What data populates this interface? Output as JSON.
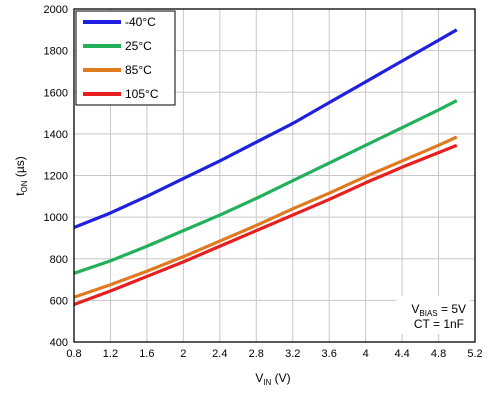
{
  "chart_data": {
    "type": "line",
    "title": "",
    "xlabel": {
      "main": "V",
      "sub": "IN",
      "unit": " (V)"
    },
    "ylabel": {
      "main": "t",
      "sub": "ON",
      "unit": " (µs)"
    },
    "xlim": [
      0.8,
      5.2
    ],
    "ylim": [
      400,
      2000
    ],
    "xticks": [
      0.8,
      1.2,
      1.6,
      2,
      2.4,
      2.8,
      3.2,
      3.6,
      4,
      4.4,
      4.8,
      5.2
    ],
    "xtick_labels": [
      "0.8",
      "1.2",
      "1.6",
      "2",
      "2.4",
      "2.8",
      "3.2",
      "3.6",
      "4",
      "4.4",
      "4.8",
      "5.2"
    ],
    "yticks": [
      400,
      600,
      800,
      1000,
      1200,
      1400,
      1600,
      1800,
      2000
    ],
    "ytick_labels": [
      "400",
      "600",
      "800",
      "1000",
      "1200",
      "1400",
      "1600",
      "1800",
      "2000"
    ],
    "grid": true,
    "legend_position": "top-left",
    "series": [
      {
        "name": "-40°C",
        "color": "#1f1fe0",
        "x": [
          0.8,
          1.2,
          1.6,
          2.0,
          2.4,
          2.8,
          3.2,
          3.6,
          4.0,
          4.4,
          4.8,
          5.0
        ],
        "y": [
          950,
          1020,
          1100,
          1185,
          1270,
          1360,
          1450,
          1550,
          1650,
          1750,
          1850,
          1900
        ]
      },
      {
        "name": "25°C",
        "color": "#22b05a",
        "x": [
          0.8,
          1.2,
          1.6,
          2.0,
          2.4,
          2.8,
          3.2,
          3.6,
          4.0,
          4.4,
          4.8,
          5.0
        ],
        "y": [
          730,
          790,
          860,
          935,
          1010,
          1090,
          1175,
          1260,
          1345,
          1430,
          1515,
          1560
        ]
      },
      {
        "name": "85°C",
        "color": "#e07a1f",
        "x": [
          0.8,
          1.2,
          1.6,
          2.0,
          2.4,
          2.8,
          3.2,
          3.6,
          4.0,
          4.4,
          4.8,
          5.0
        ],
        "y": [
          615,
          675,
          740,
          810,
          885,
          960,
          1040,
          1115,
          1195,
          1270,
          1345,
          1385
        ]
      },
      {
        "name": "105°C",
        "color": "#e81f1f",
        "x": [
          0.8,
          1.2,
          1.6,
          2.0,
          2.4,
          2.8,
          3.2,
          3.6,
          4.0,
          4.4,
          4.8,
          5.0
        ],
        "y": [
          580,
          645,
          715,
          785,
          860,
          935,
          1010,
          1085,
          1165,
          1240,
          1310,
          1345
        ]
      }
    ],
    "annotations": [
      {
        "main": "V",
        "sub": "BIAS",
        "rest": " = 5V"
      },
      {
        "main": "CT = 1nF",
        "sub": "",
        "rest": ""
      }
    ]
  }
}
